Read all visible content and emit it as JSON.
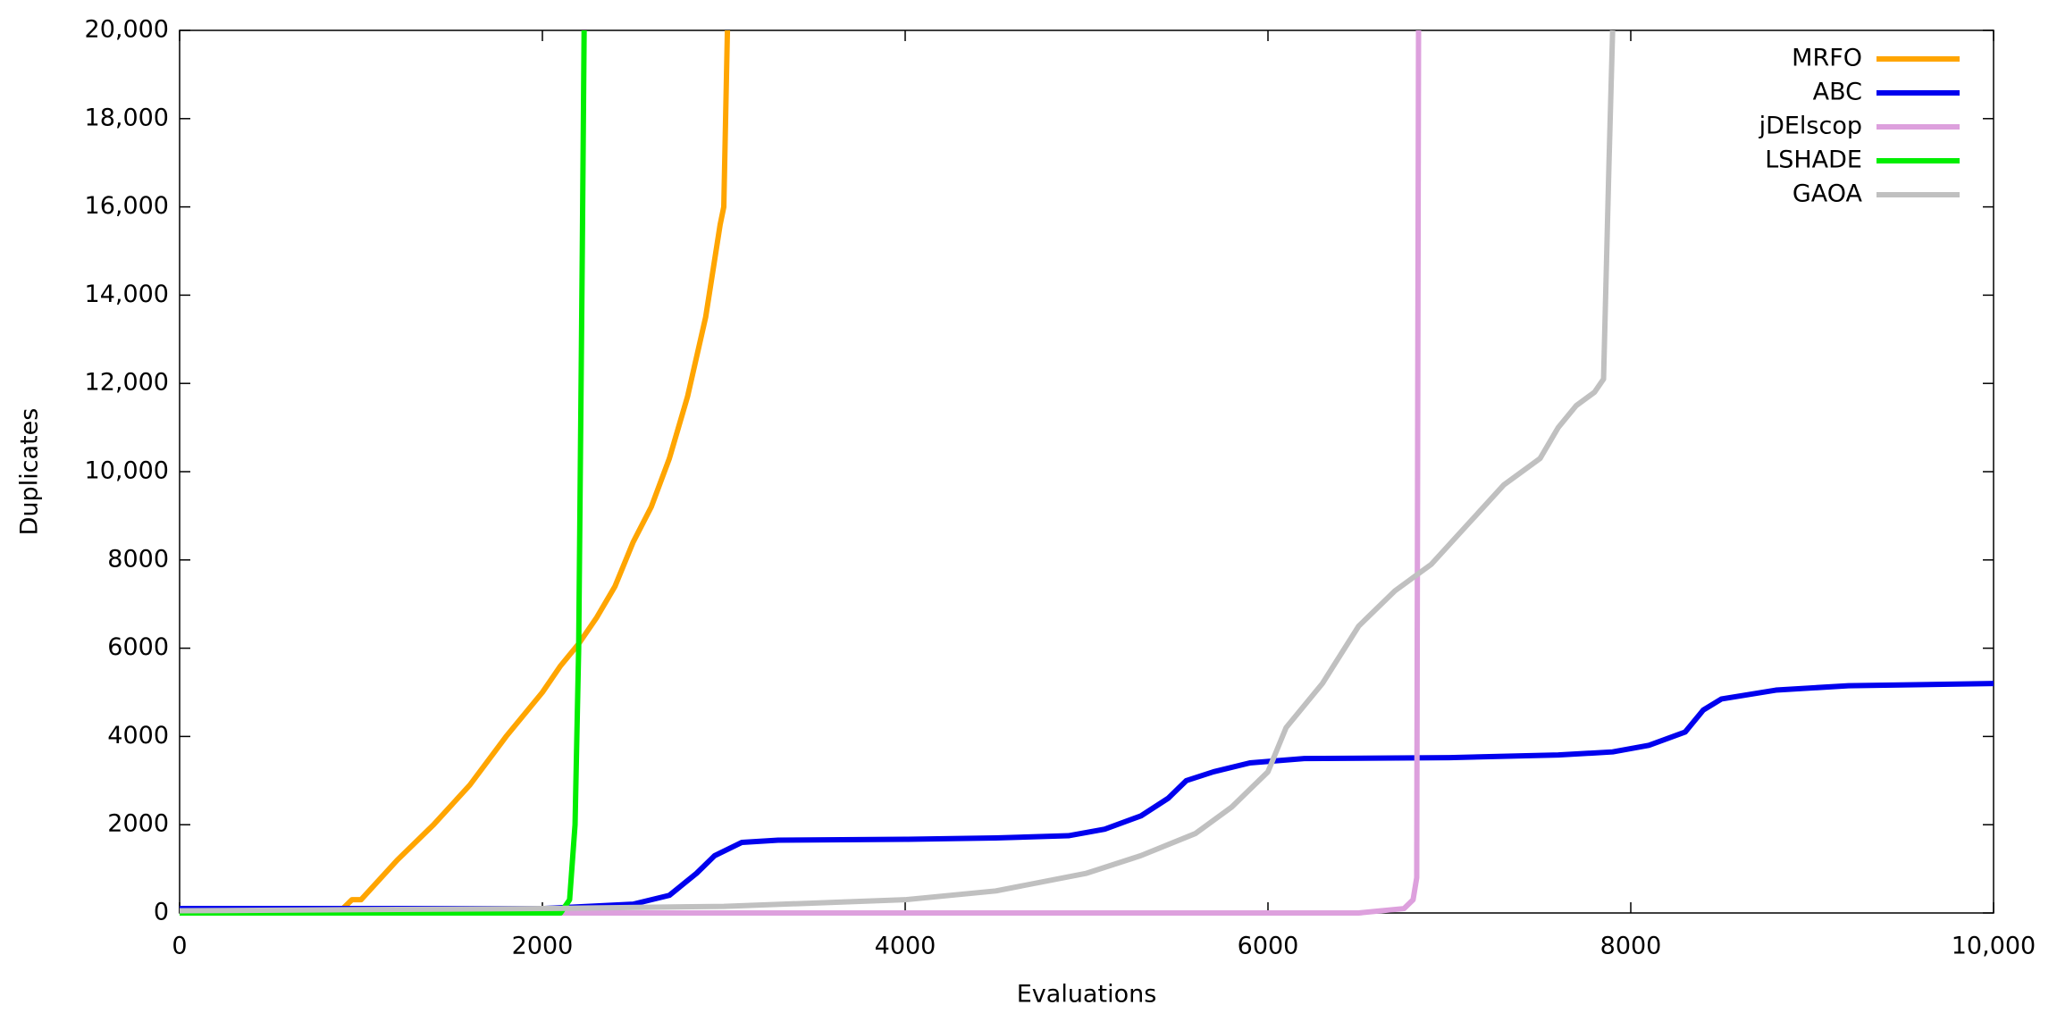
{
  "chart_data": {
    "type": "line",
    "x_label": "Evaluations",
    "y_label": "Duplicates",
    "xlim": [
      0,
      10000
    ],
    "ylim": [
      0,
      20000
    ],
    "xticks": [
      0,
      2000,
      4000,
      6000,
      8000,
      {
        "value": 10000,
        "label": "10,000"
      }
    ],
    "yticks": [
      0,
      2000,
      4000,
      6000,
      8000,
      {
        "value": 10000,
        "label": "10,000"
      },
      {
        "value": 12000,
        "label": "12,000"
      },
      {
        "value": 14000,
        "label": "14,000"
      },
      {
        "value": 16000,
        "label": "16,000"
      },
      {
        "value": 18000,
        "label": "18,000"
      },
      {
        "value": 20000,
        "label": "20,000"
      }
    ],
    "legend": "top-right",
    "series": [
      {
        "name": "MRFO",
        "color": "#ffa500",
        "x": [
          0,
          900,
          950,
          1000,
          1200,
          1400,
          1600,
          1800,
          2000,
          2100,
          2200,
          2300,
          2400,
          2500,
          2600,
          2700,
          2800,
          2900,
          2980,
          3000,
          3020
        ],
        "values": [
          100,
          100,
          300,
          300,
          1200,
          2000,
          2900,
          4000,
          5000,
          5600,
          6100,
          6700,
          7400,
          8400,
          9200,
          10300,
          11700,
          13500,
          15600,
          16000,
          20000
        ]
      },
      {
        "name": "ABC",
        "color": "#0000ee",
        "x": [
          0,
          2000,
          2500,
          2700,
          2850,
          2950,
          3100,
          3300,
          4000,
          4500,
          4900,
          5100,
          5300,
          5450,
          5550,
          5700,
          5900,
          6200,
          7000,
          7600,
          7900,
          8100,
          8300,
          8400,
          8500,
          8800,
          9200,
          10000
        ],
        "values": [
          100,
          100,
          200,
          400,
          900,
          1300,
          1600,
          1650,
          1670,
          1700,
          1750,
          1900,
          2200,
          2600,
          3000,
          3200,
          3400,
          3500,
          3520,
          3580,
          3650,
          3800,
          4100,
          4600,
          4850,
          5050,
          5150,
          5200
        ]
      },
      {
        "name": "jDElscop",
        "color": "#dda0dd",
        "x": [
          0,
          6500,
          6750,
          6800,
          6820,
          6830
        ],
        "values": [
          0,
          0,
          100,
          300,
          800,
          20000
        ]
      },
      {
        "name": "LSHADE",
        "color": "#00ee00",
        "x": [
          0,
          2100,
          2150,
          2180,
          2200,
          2220,
          2230
        ],
        "values": [
          0,
          0,
          300,
          2000,
          6000,
          15000,
          20000
        ]
      },
      {
        "name": "GAOA",
        "color": "#c0c0c0",
        "x": [
          0,
          2000,
          3000,
          4000,
          4500,
          5000,
          5300,
          5600,
          5800,
          6000,
          6100,
          6300,
          6500,
          6700,
          6900,
          7100,
          7300,
          7500,
          7600,
          7700,
          7800,
          7850,
          7880,
          7900
        ],
        "values": [
          50,
          100,
          150,
          300,
          500,
          900,
          1300,
          1800,
          2400,
          3200,
          4200,
          5200,
          6500,
          7300,
          7900,
          8800,
          9700,
          10300,
          11000,
          11500,
          11800,
          12100,
          17000,
          20000
        ]
      }
    ]
  }
}
